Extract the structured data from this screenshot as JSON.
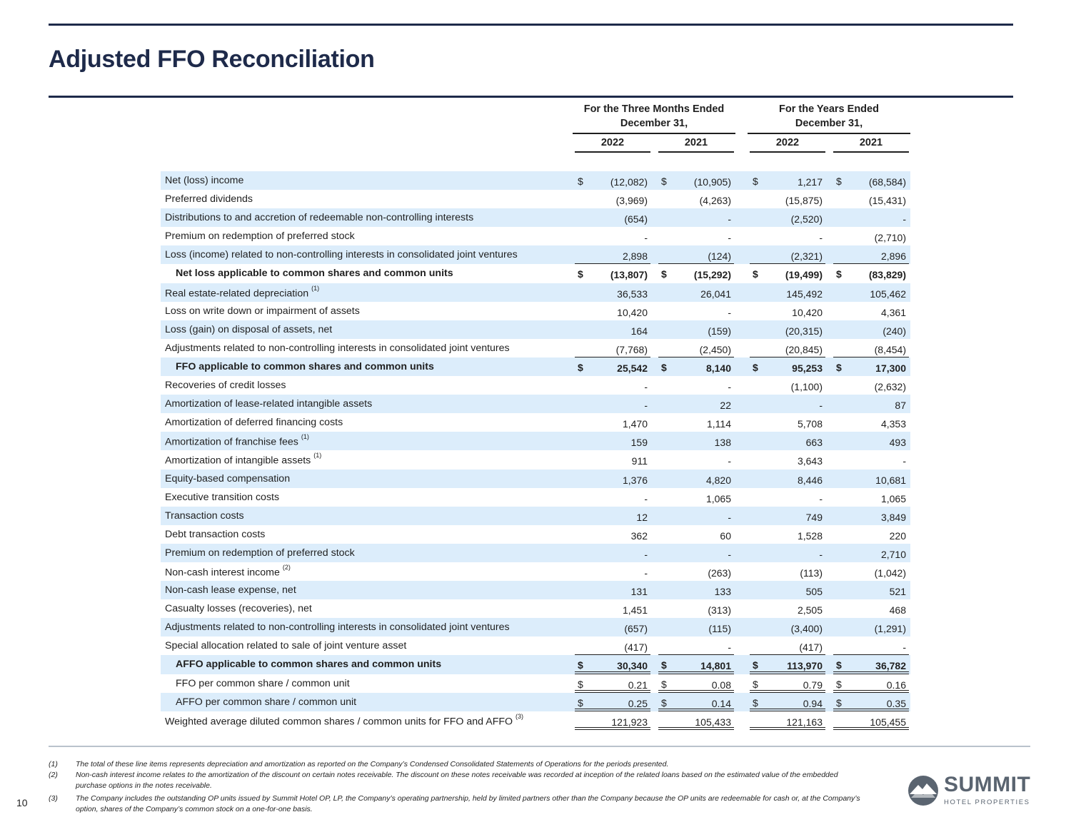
{
  "title": "Adjusted FFO Reconciliation",
  "page_number": "10",
  "header": {
    "groups": [
      {
        "line1": "For the Three Months Ended",
        "line2": "December 31,"
      },
      {
        "line1": "For the Years Ended",
        "line2": "December 31,"
      }
    ],
    "years": [
      "2022",
      "2021",
      "2022",
      "2021"
    ]
  },
  "rows": [
    {
      "label": "Net (loss) income",
      "sup": "",
      "vals": [
        "(12,082)",
        "(10,905)",
        "1,217",
        "(68,584)"
      ],
      "dollar": true,
      "shaded": true,
      "bold": false,
      "indent": false,
      "border": ""
    },
    {
      "label": "Preferred dividends",
      "sup": "",
      "vals": [
        "(3,969)",
        "(4,263)",
        "(15,875)",
        "(15,431)"
      ],
      "dollar": false,
      "shaded": false,
      "bold": false,
      "indent": false,
      "border": ""
    },
    {
      "label": "Distributions to and accretion of redeemable non-controlling interests",
      "sup": "",
      "vals": [
        "(654)",
        "-",
        "(2,520)",
        "-"
      ],
      "dollar": false,
      "shaded": true,
      "bold": false,
      "indent": false,
      "border": ""
    },
    {
      "label": "Premium on redemption of preferred stock",
      "sup": "",
      "vals": [
        "-",
        "-",
        "-",
        "(2,710)"
      ],
      "dollar": false,
      "shaded": false,
      "bold": false,
      "indent": false,
      "border": ""
    },
    {
      "label": "Loss (income) related to non-controlling interests in consolidated joint ventures",
      "sup": "",
      "vals": [
        "2,898",
        "(124)",
        "(2,321)",
        "2,896"
      ],
      "dollar": false,
      "shaded": true,
      "bold": false,
      "indent": false,
      "border": "single"
    },
    {
      "label": "Net loss applicable to common shares and common units",
      "sup": "",
      "vals": [
        "(13,807)",
        "(15,292)",
        "(19,499)",
        "(83,829)"
      ],
      "dollar": true,
      "shaded": false,
      "bold": true,
      "indent": true,
      "border": ""
    },
    {
      "label": "Real estate-related depreciation",
      "sup": "(1)",
      "vals": [
        "36,533",
        "26,041",
        "145,492",
        "105,462"
      ],
      "dollar": false,
      "shaded": true,
      "bold": false,
      "indent": false,
      "border": ""
    },
    {
      "label": "Loss on write down or impairment of assets",
      "sup": "",
      "vals": [
        "10,420",
        "-",
        "10,420",
        "4,361"
      ],
      "dollar": false,
      "shaded": false,
      "bold": false,
      "indent": false,
      "border": ""
    },
    {
      "label": "Loss (gain) on disposal of assets, net",
      "sup": "",
      "vals": [
        "164",
        "(159)",
        "(20,315)",
        "(240)"
      ],
      "dollar": false,
      "shaded": true,
      "bold": false,
      "indent": false,
      "border": ""
    },
    {
      "label": "Adjustments related to non-controlling interests in consolidated joint ventures",
      "sup": "",
      "vals": [
        "(7,768)",
        "(2,450)",
        "(20,845)",
        "(8,454)"
      ],
      "dollar": false,
      "shaded": false,
      "bold": false,
      "indent": false,
      "border": "single"
    },
    {
      "label": "FFO applicable to common shares and common units",
      "sup": "",
      "vals": [
        "25,542",
        "8,140",
        "95,253",
        "17,300"
      ],
      "dollar": true,
      "shaded": true,
      "bold": true,
      "indent": true,
      "border": ""
    },
    {
      "label": "Recoveries of credit losses",
      "sup": "",
      "vals": [
        "-",
        "-",
        "(1,100)",
        "(2,632)"
      ],
      "dollar": false,
      "shaded": false,
      "bold": false,
      "indent": false,
      "border": ""
    },
    {
      "label": "Amortization of lease-related intangible assets",
      "sup": "",
      "vals": [
        "-",
        "22",
        "-",
        "87"
      ],
      "dollar": false,
      "shaded": true,
      "bold": false,
      "indent": false,
      "border": ""
    },
    {
      "label": "Amortization of deferred financing costs",
      "sup": "",
      "vals": [
        "1,470",
        "1,114",
        "5,708",
        "4,353"
      ],
      "dollar": false,
      "shaded": false,
      "bold": false,
      "indent": false,
      "border": ""
    },
    {
      "label": "Amortization of franchise fees",
      "sup": "(1)",
      "vals": [
        "159",
        "138",
        "663",
        "493"
      ],
      "dollar": false,
      "shaded": true,
      "bold": false,
      "indent": false,
      "border": ""
    },
    {
      "label": "Amortization of intangible assets",
      "sup": "(1)",
      "vals": [
        "911",
        "-",
        "3,643",
        "-"
      ],
      "dollar": false,
      "shaded": false,
      "bold": false,
      "indent": false,
      "border": ""
    },
    {
      "label": "Equity-based compensation",
      "sup": "",
      "vals": [
        "1,376",
        "4,820",
        "8,446",
        "10,681"
      ],
      "dollar": false,
      "shaded": true,
      "bold": false,
      "indent": false,
      "border": ""
    },
    {
      "label": "Executive transition costs",
      "sup": "",
      "vals": [
        "-",
        "1,065",
        "-",
        "1,065"
      ],
      "dollar": false,
      "shaded": false,
      "bold": false,
      "indent": false,
      "border": ""
    },
    {
      "label": "Transaction costs",
      "sup": "",
      "vals": [
        "12",
        "-",
        "749",
        "3,849"
      ],
      "dollar": false,
      "shaded": true,
      "bold": false,
      "indent": false,
      "border": ""
    },
    {
      "label": "Debt transaction costs",
      "sup": "",
      "vals": [
        "362",
        "60",
        "1,528",
        "220"
      ],
      "dollar": false,
      "shaded": false,
      "bold": false,
      "indent": false,
      "border": ""
    },
    {
      "label": "Premium on redemption of preferred stock",
      "sup": "",
      "vals": [
        "-",
        "-",
        "-",
        "2,710"
      ],
      "dollar": false,
      "shaded": true,
      "bold": false,
      "indent": false,
      "border": ""
    },
    {
      "label": "Non-cash interest income",
      "sup": "(2)",
      "vals": [
        "-",
        "(263)",
        "(113)",
        "(1,042)"
      ],
      "dollar": false,
      "shaded": false,
      "bold": false,
      "indent": false,
      "border": ""
    },
    {
      "label": "Non-cash lease expense, net",
      "sup": "",
      "vals": [
        "131",
        "133",
        "505",
        "521"
      ],
      "dollar": false,
      "shaded": true,
      "bold": false,
      "indent": false,
      "border": ""
    },
    {
      "label": "Casualty losses (recoveries), net",
      "sup": "",
      "vals": [
        "1,451",
        "(313)",
        "2,505",
        "468"
      ],
      "dollar": false,
      "shaded": false,
      "bold": false,
      "indent": false,
      "border": ""
    },
    {
      "label": "Adjustments related to non-controlling interests in consolidated joint ventures",
      "sup": "",
      "vals": [
        "(657)",
        "(115)",
        "(3,400)",
        "(1,291)"
      ],
      "dollar": false,
      "shaded": true,
      "bold": false,
      "indent": false,
      "border": ""
    },
    {
      "label": "Special allocation related to sale of joint venture asset",
      "sup": "",
      "vals": [
        "(417)",
        "-",
        "(417)",
        "-"
      ],
      "dollar": false,
      "shaded": false,
      "bold": false,
      "indent": false,
      "border": "single"
    },
    {
      "label": "AFFO applicable to common shares and common units",
      "sup": "",
      "vals": [
        "30,340",
        "14,801",
        "113,970",
        "36,782"
      ],
      "dollar": true,
      "shaded": true,
      "bold": true,
      "indent": true,
      "border": "double"
    },
    {
      "label": "FFO per common share / common unit",
      "sup": "",
      "vals": [
        "0.21",
        "0.08",
        "0.79",
        "0.16"
      ],
      "dollar": true,
      "shaded": false,
      "bold": false,
      "indent": true,
      "border": "double"
    },
    {
      "label": "AFFO per common share / common unit",
      "sup": "",
      "vals": [
        "0.25",
        "0.14",
        "0.94",
        "0.35"
      ],
      "dollar": true,
      "shaded": true,
      "bold": false,
      "indent": true,
      "border": "double"
    },
    {
      "label": "Weighted average diluted common shares / common units for FFO and AFFO",
      "sup": "(3)",
      "vals": [
        "121,923",
        "105,433",
        "121,163",
        "105,455"
      ],
      "dollar": false,
      "shaded": false,
      "bold": false,
      "indent": false,
      "border": "double"
    }
  ],
  "footnotes": [
    {
      "num": "(1)",
      "text": "The total of these line items represents depreciation and amortization as reported on the Company’s Condensed Consolidated Statements of Operations for the periods presented."
    },
    {
      "num": "(2)",
      "text": "Non-cash interest income relates to the amortization of the discount on certain notes receivable. The discount on these notes receivable was recorded at inception of the related loans based on the estimated value of the embedded purchase options in the notes receivable."
    },
    {
      "num": "(3)",
      "text": "The Company includes the outstanding OP units issued by Summit Hotel OP, LP, the Company’s operating partnership, held by limited partners other than the Company because the OP units are redeemable for cash or, at the Company’s option, shares of the Company’s common stock on a one-for-one basis."
    }
  ],
  "logo": {
    "word": "SUMMIT",
    "sub": "HOTEL PROPERTIES"
  },
  "colors": {
    "navy": "#1e2a4a",
    "row_shade": "#dcedfb",
    "logo_gray": "#5a6470"
  }
}
